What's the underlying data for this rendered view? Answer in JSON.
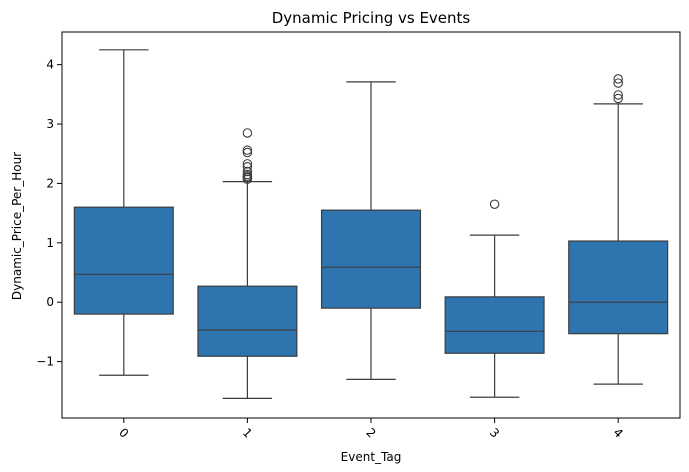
{
  "chart_data": {
    "type": "box",
    "title": "Dynamic Pricing vs Events",
    "xlabel": "Event_Tag",
    "ylabel": "Dynamic_Price_Per_Hour",
    "categories": [
      "0",
      "1",
      "2",
      "3",
      "4"
    ],
    "yticks": [
      {
        "value": 4,
        "label": "4"
      },
      {
        "value": 3,
        "label": "3"
      },
      {
        "value": 2,
        "label": "2"
      },
      {
        "value": 1,
        "label": "1"
      },
      {
        "value": 0,
        "label": "0"
      },
      {
        "value": -1,
        "label": "−1"
      }
    ],
    "ylim": [
      -1.95,
      4.55
    ],
    "grid": false,
    "box_color": "#2e75b0",
    "boxes": [
      {
        "category": "0",
        "whisker_low": -1.23,
        "q1": -0.2,
        "median": 0.47,
        "q3": 1.6,
        "whisker_high": 4.25,
        "outliers": []
      },
      {
        "category": "1",
        "whisker_low": -1.62,
        "q1": -0.91,
        "median": -0.47,
        "q3": 0.27,
        "whisker_high": 2.03,
        "outliers": [
          2.07,
          2.1,
          2.12,
          2.15,
          2.2,
          2.28,
          2.33,
          2.52,
          2.56,
          2.85
        ]
      },
      {
        "category": "2",
        "whisker_low": -1.3,
        "q1": -0.1,
        "median": 0.59,
        "q3": 1.55,
        "whisker_high": 3.71,
        "outliers": []
      },
      {
        "category": "3",
        "whisker_low": -1.6,
        "q1": -0.86,
        "median": -0.49,
        "q3": 0.09,
        "whisker_high": 1.13,
        "outliers": [
          1.65
        ]
      },
      {
        "category": "4",
        "whisker_low": -1.38,
        "q1": -0.53,
        "median": 0.0,
        "q3": 1.03,
        "whisker_high": 3.34,
        "outliers": [
          3.43,
          3.49,
          3.69,
          3.76
        ]
      }
    ]
  }
}
